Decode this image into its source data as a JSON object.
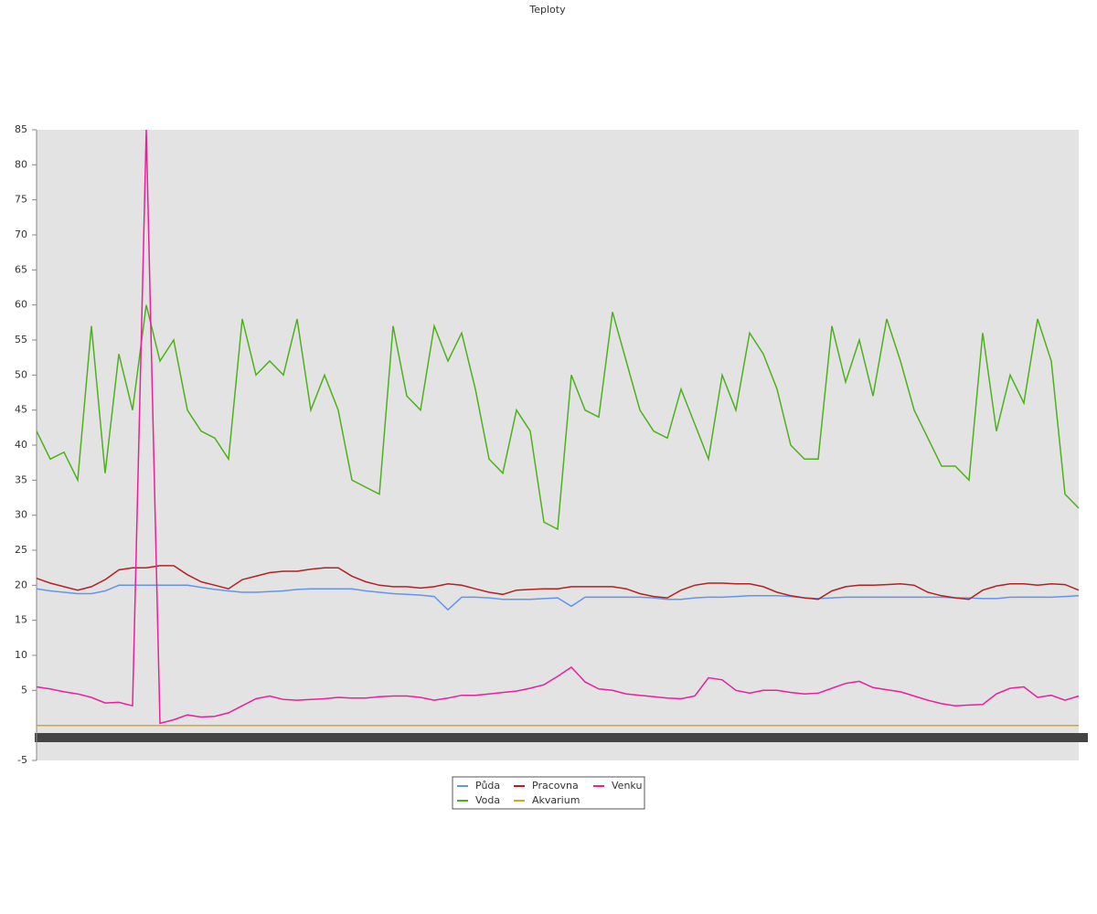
{
  "chart_data": {
    "type": "line",
    "title": "Teploty",
    "categories": [
      null,
      null,
      null,
      null,
      null,
      null,
      null,
      null,
      null,
      null,
      null,
      null,
      null,
      null,
      null,
      null,
      null,
      null,
      null,
      null,
      null,
      null,
      null,
      null,
      null,
      null,
      null,
      null,
      null,
      null,
      null,
      null,
      null,
      null,
      null,
      null,
      null,
      null,
      null,
      null,
      null,
      null,
      null,
      null,
      null,
      null,
      null,
      null,
      null,
      null,
      null,
      null,
      null,
      null,
      null,
      null,
      null,
      null,
      null,
      null,
      null,
      null,
      null,
      null,
      null,
      null,
      null,
      null,
      null,
      null,
      null,
      null,
      null,
      null,
      null,
      null,
      null
    ],
    "ylim": [
      -5,
      85
    ],
    "yticks": [
      -5,
      5,
      10,
      15,
      20,
      25,
      30,
      35,
      40,
      45,
      50,
      55,
      60,
      65,
      70,
      75,
      80,
      85
    ],
    "series": [
      {
        "name": "Půda",
        "color": "#6495ed",
        "values": [
          19.5,
          19.2,
          19,
          18.8,
          18.8,
          19.2,
          20,
          20,
          20,
          20,
          20,
          20,
          19.7,
          19.4,
          19.2,
          19,
          19,
          19.1,
          19.2,
          19.4,
          19.5,
          19.5,
          19.5,
          19.5,
          19.2,
          19,
          18.8,
          18.7,
          18.6,
          18.4,
          16.5,
          18.3,
          18.3,
          18.2,
          18,
          18,
          18,
          18.1,
          18.2,
          17,
          18.3,
          18.3,
          18.3,
          18.3,
          18.3,
          18.2,
          18,
          18,
          18.2,
          18.3,
          18.3,
          18.4,
          18.5,
          18.5,
          18.5,
          18.4,
          18.2,
          18.1,
          18.2,
          18.3,
          18.3,
          18.3,
          18.3,
          18.3,
          18.3,
          18.3,
          18.3,
          18.2,
          18.2,
          18.1,
          18.1,
          18.3,
          18.3,
          18.3,
          18.3,
          18.4,
          18.5
        ]
      },
      {
        "name": "Voda",
        "color": "#4cb21c",
        "values": [
          42,
          38,
          39,
          35,
          57,
          36,
          53,
          45,
          60,
          52,
          55,
          45,
          42,
          41,
          38,
          58,
          50,
          52,
          50,
          58,
          45,
          50,
          45,
          35,
          34,
          33,
          57,
          47,
          45,
          57,
          52,
          56,
          48,
          38,
          36,
          45,
          42,
          29,
          28,
          50,
          45,
          44,
          59,
          52,
          45,
          42,
          41,
          48,
          43,
          38,
          50,
          45,
          56,
          53,
          48,
          40,
          38,
          38,
          57,
          49,
          55,
          47,
          58,
          52,
          45,
          41,
          37,
          37,
          35,
          56,
          42,
          50,
          46,
          58,
          52,
          33,
          31
        ]
      },
      {
        "name": "Pracovna",
        "color": "#b22222",
        "values": [
          21,
          20.3,
          19.8,
          19.3,
          19.8,
          20.8,
          22.2,
          22.5,
          22.5,
          22.8,
          22.8,
          21.5,
          20.5,
          20,
          19.5,
          20.8,
          21.3,
          21.8,
          22,
          22,
          22.3,
          22.5,
          22.5,
          21.3,
          20.5,
          20,
          19.8,
          19.8,
          19.6,
          19.8,
          20.2,
          20,
          19.5,
          19,
          18.7,
          19.3,
          19.4,
          19.5,
          19.5,
          19.8,
          19.8,
          19.8,
          19.8,
          19.5,
          18.8,
          18.4,
          18.2,
          19.3,
          20,
          20.3,
          20.3,
          20.2,
          20.2,
          19.8,
          19,
          18.5,
          18.2,
          18,
          19.2,
          19.8,
          20,
          20,
          20.1,
          20.2,
          20,
          19,
          18.5,
          18.2,
          18,
          19.3,
          19.9,
          20.2,
          20.2,
          20,
          20.2,
          20.1,
          19.3
        ]
      },
      {
        "name": "Akvarium",
        "color": "#daa520",
        "values": [
          0,
          0,
          0,
          0,
          0,
          0,
          0,
          0,
          0,
          0,
          0,
          0,
          0,
          0,
          0,
          0,
          0,
          0,
          0,
          0,
          0,
          0,
          0,
          0,
          0,
          0,
          0,
          0,
          0,
          0,
          0,
          0,
          0,
          0,
          0,
          0,
          0,
          0,
          0,
          0,
          0,
          0,
          0,
          0,
          0,
          0,
          0,
          0,
          0,
          0,
          0,
          0,
          0,
          0,
          0,
          0,
          0,
          0,
          0,
          0,
          0,
          0,
          0,
          0,
          0,
          0,
          0,
          0,
          0,
          0,
          0,
          0,
          0,
          0,
          0,
          0,
          0
        ]
      },
      {
        "name": "Venku",
        "color": "#e8209c",
        "values": [
          5.5,
          5.2,
          4.8,
          4.5,
          4,
          3.2,
          3.3,
          2.8,
          85,
          0.3,
          0.8,
          1.5,
          1.2,
          1.3,
          1.8,
          2.8,
          3.8,
          4.2,
          3.7,
          3.6,
          3.7,
          3.8,
          4,
          3.9,
          3.9,
          4.1,
          4.2,
          4.2,
          4,
          3.6,
          3.9,
          4.3,
          4.3,
          4.5,
          4.7,
          4.9,
          5.3,
          5.8,
          7,
          8.3,
          6.2,
          5.2,
          5,
          4.5,
          4.3,
          4.1,
          3.9,
          3.8,
          4.2,
          6.8,
          6.5,
          5,
          4.6,
          5,
          5,
          4.7,
          4.5,
          4.6,
          5.3,
          6,
          6.3,
          5.4,
          5.1,
          4.8,
          4.2,
          3.6,
          3.1,
          2.8,
          2.9,
          3,
          4.5,
          5.3,
          5.5,
          4,
          4.3,
          3.6,
          4.2
        ]
      }
    ]
  }
}
